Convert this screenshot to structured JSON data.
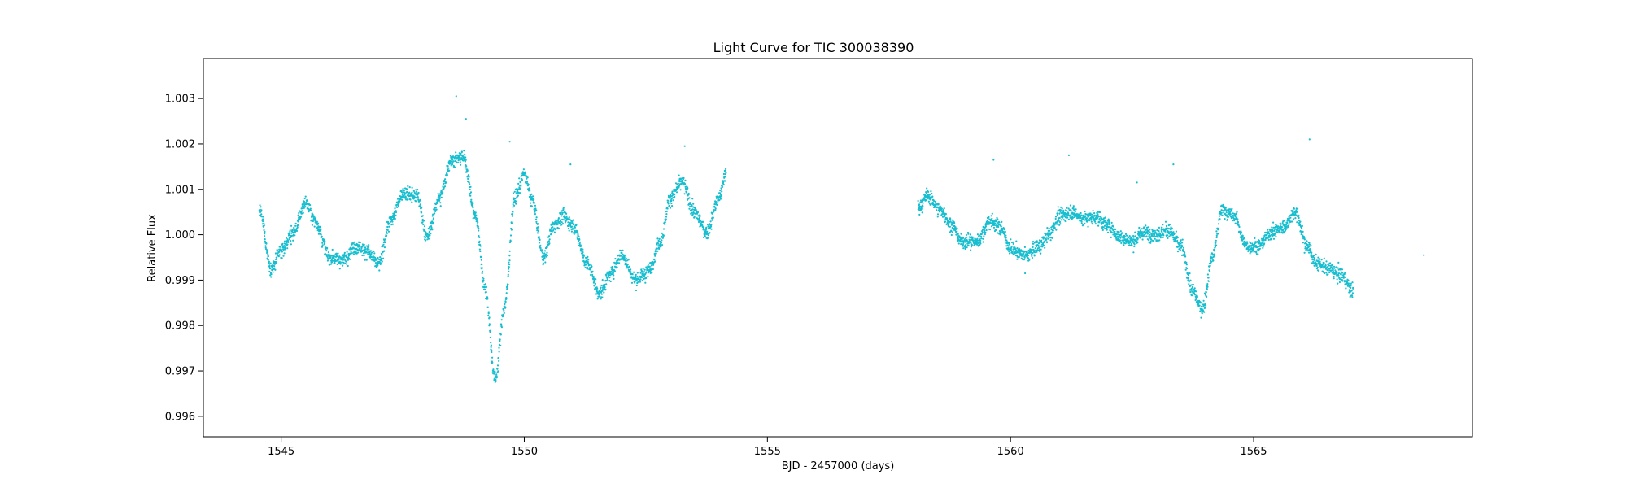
{
  "chart_data": {
    "type": "scatter",
    "title": "Light Curve for TIC 300038390",
    "xlabel": "BJD - 2457000 (days)",
    "ylabel": "Relative Flux",
    "xlim": [
      1543.4,
      1569.5
    ],
    "ylim": [
      0.99555,
      1.00388
    ],
    "xticks": [
      1545,
      1550,
      1555,
      1560,
      1565
    ],
    "yticks": [
      0.996,
      0.997,
      0.998,
      0.999,
      1.0,
      1.001,
      1.002,
      1.003
    ],
    "ytick_labels": [
      "0.996",
      "0.997",
      "0.998",
      "0.999",
      "1.000",
      "1.001",
      "1.002",
      "1.003"
    ],
    "grid": false,
    "marker_color": "#17becf",
    "series": [
      {
        "name": "",
        "segments": [
          {
            "x": [
              1544.55,
              1544.8,
              1545.0,
              1545.25,
              1545.5,
              1545.7,
              1546.0,
              1546.25,
              1546.55,
              1546.75,
              1547.0,
              1547.25,
              1547.5,
              1547.8,
              1548.0,
              1548.25,
              1548.5,
              1548.75,
              1549.0,
              1549.2,
              1549.4,
              1549.6,
              1549.8,
              1550.0,
              1550.15,
              1550.4,
              1550.6,
              1550.8,
              1551.0,
              1551.3,
              1551.55,
              1551.75,
              1552.0,
              1552.3,
              1552.55,
              1552.8,
              1553.0,
              1553.25,
              1553.5,
              1553.75,
              1554.0,
              1554.15
            ],
            "y": [
              1.00055,
              0.99925,
              0.99965,
              1.00005,
              1.0007,
              1.0003,
              0.9995,
              0.99945,
              0.99975,
              0.99965,
              0.99935,
              1.0003,
              1.0009,
              1.00085,
              0.99995,
              1.0008,
              1.00165,
              1.0017,
              1.0004,
              0.9988,
              0.9968,
              0.99845,
              1.0008,
              1.00135,
              1.0008,
              0.9995,
              1.0002,
              1.0004,
              1.0002,
              0.99935,
              0.9987,
              0.9991,
              0.99955,
              0.999,
              0.9992,
              0.99985,
              1.0008,
              1.00115,
              1.0005,
              1.00005,
              1.0008,
              1.00135
            ]
          },
          {
            "x": [
              1558.1,
              1558.3,
              1558.55,
              1558.8,
              1559.0,
              1559.3,
              1559.6,
              1559.8,
              1560.0,
              1560.3,
              1560.6,
              1560.8,
              1561.0,
              1561.25,
              1561.5,
              1561.75,
              1562.0,
              1562.25,
              1562.5,
              1562.75,
              1563.0,
              1563.25,
              1563.5,
              1563.75,
              1563.95,
              1564.15,
              1564.35,
              1564.6,
              1564.85,
              1565.1,
              1565.35,
              1565.6,
              1565.85,
              1566.1,
              1566.3,
              1566.55,
              1566.8,
              1567.05
            ],
            "y": [
              1.0006,
              1.00085,
              1.00055,
              1.0002,
              0.99985,
              0.99985,
              1.0003,
              1.00015,
              0.9997,
              0.99955,
              0.99975,
              1.0,
              1.0004,
              1.0005,
              1.00035,
              1.0004,
              1.0002,
              0.99995,
              0.99985,
              1.00005,
              1.0,
              1.0001,
              0.99975,
              0.99875,
              0.99835,
              0.9995,
              1.00055,
              1.0004,
              0.99975,
              0.99975,
              1.00005,
              1.00015,
              1.0005,
              0.99975,
              0.99935,
              0.99925,
              0.9991,
              0.99875
            ]
          }
        ],
        "outliers": {
          "x": [
            1548.6,
            1548.8,
            1549.7,
            1550.95,
            1553.3,
            1559.65,
            1560.3,
            1561.2,
            1562.6,
            1563.35,
            1566.15,
            1568.5
          ],
          "y": [
            1.00305,
            1.00255,
            1.00205,
            1.00155,
            1.00195,
            1.00165,
            0.99915,
            1.00175,
            1.00115,
            1.00155,
            1.0021,
            0.99955
          ]
        }
      }
    ]
  }
}
